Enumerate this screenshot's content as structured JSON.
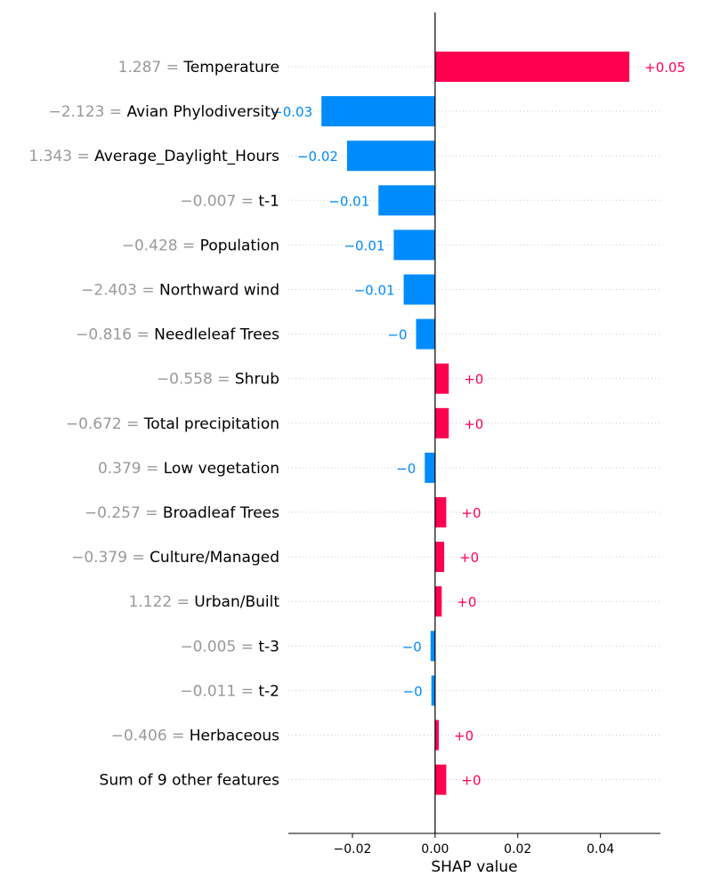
{
  "chart_data": {
    "type": "bar",
    "orientation": "horizontal",
    "xlabel": "SHAP value",
    "xlim": [
      -0.0355,
      0.0545
    ],
    "x_ticks": [
      -0.02,
      0.0,
      0.02,
      0.04
    ],
    "x_tick_labels": [
      "−0.02",
      "0.00",
      "0.02",
      "0.04"
    ],
    "grid": "dotted horizontal per row",
    "colors": {
      "positive": "#ff0051",
      "negative": "#008bfb",
      "feature_value": "#999999",
      "feature_name": "#000000"
    },
    "features": [
      {
        "feature_value": "1.287 =",
        "name": "Temperature",
        "shap": 0.047,
        "label": "+0.05"
      },
      {
        "feature_value": "−2.123 =",
        "name": "Avian Phylodiversity",
        "shap": -0.0275,
        "label": "−0.03"
      },
      {
        "feature_value": "1.343 =",
        "name": "Average_Daylight_Hours",
        "shap": -0.0213,
        "label": "−0.02"
      },
      {
        "feature_value": "−0.007 =",
        "name": "t-1",
        "shap": -0.0137,
        "label": "−0.01"
      },
      {
        "feature_value": "−0.428 =",
        "name": "Population",
        "shap": -0.01,
        "label": "−0.01"
      },
      {
        "feature_value": "−2.403 =",
        "name": "Northward wind",
        "shap": -0.0076,
        "label": "−0.01"
      },
      {
        "feature_value": "−0.816 =",
        "name": "Needleleaf Trees",
        "shap": -0.0046,
        "label": "−0"
      },
      {
        "feature_value": "−0.558 =",
        "name": "Shrub",
        "shap": 0.0033,
        "label": "+0"
      },
      {
        "feature_value": "−0.672 =",
        "name": "Total precipitation",
        "shap": 0.0033,
        "label": "+0"
      },
      {
        "feature_value": "0.379 =",
        "name": "Low vegetation",
        "shap": -0.0025,
        "label": "−0"
      },
      {
        "feature_value": "−0.257 =",
        "name": "Broadleaf Trees",
        "shap": 0.0027,
        "label": "+0"
      },
      {
        "feature_value": "−0.379 =",
        "name": "Culture/Managed",
        "shap": 0.0022,
        "label": "+0"
      },
      {
        "feature_value": "1.122 =",
        "name": "Urban/Built",
        "shap": 0.0016,
        "label": "+0"
      },
      {
        "feature_value": "−0.005 =",
        "name": "t-3",
        "shap": -0.0011,
        "label": "−0"
      },
      {
        "feature_value": "−0.011 =",
        "name": "t-2",
        "shap": -0.0009,
        "label": "−0"
      },
      {
        "feature_value": "−0.406 =",
        "name": "Herbaceous",
        "shap": 0.0009,
        "label": "+0"
      },
      {
        "feature_value": "",
        "name": "Sum of 9 other features",
        "shap": 0.0027,
        "label": "+0"
      }
    ]
  }
}
